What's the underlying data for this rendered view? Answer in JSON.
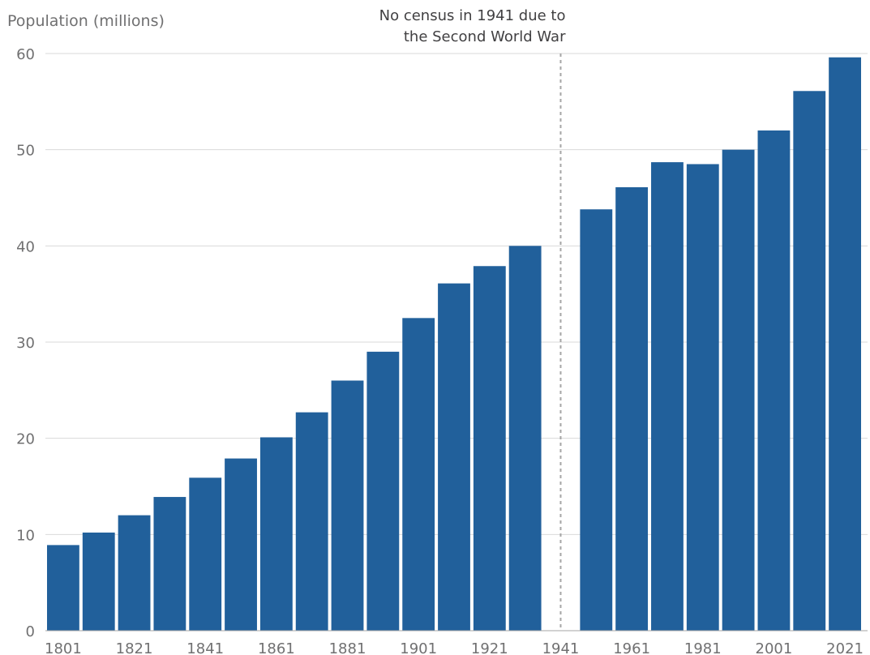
{
  "chart_data": {
    "type": "bar",
    "title": "",
    "xlabel": "",
    "ylabel": "Population (millions)",
    "ylim": [
      0,
      60
    ],
    "yticks": [
      0,
      10,
      20,
      30,
      40,
      50,
      60
    ],
    "xtick_labels": [
      "1801",
      "1821",
      "1841",
      "1861",
      "1881",
      "1901",
      "1921",
      "1941",
      "1961",
      "1981",
      "2001",
      "2021"
    ],
    "categories": [
      "1801",
      "1811",
      "1821",
      "1831",
      "1841",
      "1851",
      "1861",
      "1871",
      "1881",
      "1891",
      "1901",
      "1911",
      "1921",
      "1931",
      "1941",
      "1951",
      "1961",
      "1971",
      "1981",
      "1991",
      "2001",
      "2011",
      "2021"
    ],
    "values": [
      8.9,
      10.2,
      12.0,
      13.9,
      15.9,
      17.9,
      20.1,
      22.7,
      26.0,
      29.0,
      32.5,
      36.1,
      37.9,
      40.0,
      null,
      43.8,
      46.1,
      48.7,
      48.5,
      50.0,
      52.0,
      56.1,
      59.6
    ],
    "bar_color": "#21609b",
    "grid": true,
    "legend": "none",
    "annotation": {
      "text_line1": "No census in 1941 due to",
      "text_line2": "the Second World War",
      "at_category": "1941",
      "style": "dashed vertical line"
    }
  }
}
